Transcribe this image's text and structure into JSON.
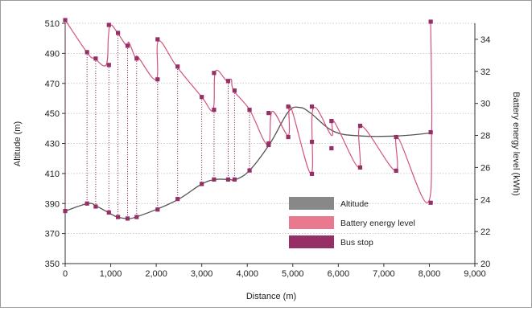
{
  "chart_data": {
    "type": "line",
    "title": "",
    "xlabel": "Distance (m)",
    "ylabel": "Altitude (m)",
    "y2label": "Battery energy level (kWh)",
    "xlim": [
      0,
      9000
    ],
    "ylim": [
      350,
      510
    ],
    "y2lim": [
      20,
      35
    ],
    "xticks": [
      0,
      1000,
      2000,
      3000,
      4000,
      5000,
      6000,
      7000,
      8000,
      9000
    ],
    "xtick_labels": [
      "0",
      "1,000",
      "2,000",
      "3,000",
      "4,000",
      "5,000",
      "6,000",
      "7,000",
      "8,000",
      "9,000"
    ],
    "yticks": [
      350,
      370,
      390,
      410,
      430,
      450,
      470,
      490,
      510
    ],
    "y2ticks": [
      20,
      22,
      24,
      26,
      28,
      30,
      32,
      34
    ],
    "grid": "horizontal dotted",
    "legend_position": "bottom-right",
    "legend": [
      {
        "label": "Altitude",
        "color": "#888888"
      },
      {
        "label": "Battery energy level",
        "color": "#e8798f"
      },
      {
        "label": "Bus stop",
        "color": "#962f66"
      }
    ],
    "altitude": {
      "name": "Altitude",
      "axis": "left",
      "color": "#555555",
      "x": [
        0,
        500,
        700,
        950,
        1150,
        1400,
        1550,
        2000,
        2500,
        3000,
        3300,
        3600,
        3750,
        4050,
        4500,
        4900,
        5150,
        5400,
        5900,
        6500,
        7300,
        8050
      ],
      "y": [
        385,
        390,
        388,
        384,
        381,
        380,
        381,
        386,
        393,
        403,
        406,
        406,
        406,
        412,
        430,
        451,
        454,
        450,
        438,
        435,
        435,
        437
      ]
    },
    "battery": {
      "name": "Battery energy level",
      "axis": "right",
      "color": "#d2547a",
      "x": [
        0,
        500,
        650,
        900,
        950,
        1000,
        1150,
        1350,
        1400,
        1550,
        1600,
        2000,
        2050,
        2450,
        3000,
        3250,
        3300,
        3550,
        3650,
        3700,
        4050,
        4450,
        4550,
        4900,
        4950,
        5400,
        5450,
        5850,
        5900,
        6450,
        6500,
        7250,
        7300,
        7950,
        8050,
        8030
      ],
      "y": [
        35.2,
        33.1,
        32.8,
        32.4,
        34.2,
        34.9,
        34.4,
        33.6,
        33.8,
        32.8,
        32.9,
        31.5,
        33.9,
        32.3,
        30.4,
        29.6,
        32,
        31.4,
        31.5,
        30.8,
        29.6,
        27.4,
        29.5,
        28,
        29.8,
        25.6,
        29.7,
        28,
        28.9,
        26,
        28.6,
        25.8,
        27.9,
        23.8,
        28.2,
        35
      ]
    },
    "bus_stops": {
      "name": "Bus stop",
      "color": "#962f66",
      "points": [
        {
          "x": 0,
          "altitude": 385,
          "battery": 35.2
        },
        {
          "x": 480,
          "altitude": 390,
          "battery": 33.2
        },
        {
          "x": 670,
          "altitude": 388,
          "battery": 32.8
        },
        {
          "x": 960,
          "altitude": 384,
          "battery": 32.4
        },
        {
          "x": 960,
          "battery": 34.9
        },
        {
          "x": 1160,
          "altitude": 381,
          "battery": 34.4
        },
        {
          "x": 1370,
          "altitude": 380,
          "battery": 33.6
        },
        {
          "x": 1570,
          "altitude": 381,
          "battery": 32.8
        },
        {
          "x": 2030,
          "altitude": 386,
          "battery": 31.5
        },
        {
          "x": 2030,
          "battery": 34.0
        },
        {
          "x": 2470,
          "altitude": 393,
          "battery": 32.3
        },
        {
          "x": 3000,
          "altitude": 403,
          "battery": 30.4
        },
        {
          "x": 3270,
          "altitude": 406,
          "battery": 29.6
        },
        {
          "x": 3270,
          "battery": 31.9
        },
        {
          "x": 3580,
          "altitude": 406,
          "battery": 31.4
        },
        {
          "x": 3720,
          "altitude": 406,
          "battery": 30.8
        },
        {
          "x": 4050,
          "altitude": 412,
          "battery": 29.6
        },
        {
          "x": 4470,
          "altitude": 430,
          "battery": 27.4
        },
        {
          "x": 4470,
          "battery": 29.4
        },
        {
          "x": 4900,
          "battery": 27.9
        },
        {
          "x": 4900,
          "battery": 29.8
        },
        {
          "x": 5420,
          "battery": 25.6
        },
        {
          "x": 5420,
          "battery": 29.8
        },
        {
          "x": 5420,
          "battery": 27.6
        },
        {
          "x": 5850,
          "battery": 27.2
        },
        {
          "x": 5850,
          "battery": 28.9
        },
        {
          "x": 6480,
          "battery": 26.0
        },
        {
          "x": 6480,
          "battery": 28.6
        },
        {
          "x": 7270,
          "battery": 25.8
        },
        {
          "x": 7270,
          "battery": 27.9
        },
        {
          "x": 8030,
          "battery": 23.8
        },
        {
          "x": 8030,
          "battery": 28.2
        },
        {
          "x": 8030,
          "battery": 35.1
        }
      ]
    }
  }
}
